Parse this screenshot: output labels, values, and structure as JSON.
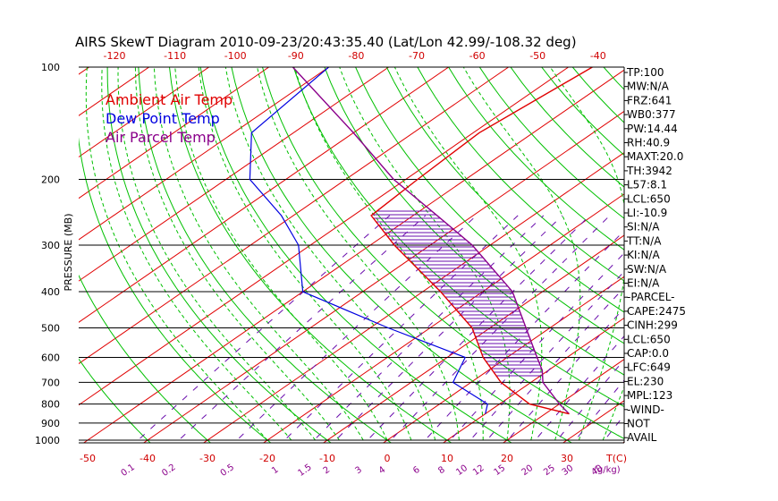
{
  "chart_data": {
    "type": "skewt",
    "title": "AIRS SkewT Diagram 2010-09-23/20:43:35.40 (Lat/Lon 42.99/-108.32 deg)",
    "ylabel": "PRESSURE (MB)",
    "pressure_ticks": [
      "100",
      "200",
      "300",
      "400",
      "500",
      "600",
      "700",
      "800",
      "900",
      "1000"
    ],
    "top_temp_ticks": [
      "-120",
      "-110",
      "-100",
      "-90",
      "-80",
      "-70",
      "-60",
      "-50",
      "-40"
    ],
    "bottom_temp_ticks": [
      "-50",
      "-40",
      "-30",
      "-20",
      "-10",
      "0",
      "10",
      "20",
      "30"
    ],
    "bottom_temp_unit": "T(C)",
    "mixing_ratio_labels": [
      "0.1",
      "0.2",
      "0.5",
      "1",
      "1.5",
      "2",
      "3",
      "4",
      "6",
      "8",
      "10",
      "12",
      "15",
      "20",
      "25",
      "30",
      "40"
    ],
    "mixing_ratio_unit": "(g/kg)",
    "legend": [
      {
        "name": "Ambient Air Temp",
        "color": "#e00000"
      },
      {
        "name": "Dew Point Temp",
        "color": "#0000e0"
      },
      {
        "name": "Air Parcel Temp",
        "color": "#8b008b"
      }
    ],
    "ambient_temp_profile": [
      {
        "p": 100,
        "t": -56
      },
      {
        "p": 150,
        "t": -59
      },
      {
        "p": 200,
        "t": -58
      },
      {
        "p": 250,
        "t": -57
      },
      {
        "p": 300,
        "t": -46
      },
      {
        "p": 400,
        "t": -27
      },
      {
        "p": 500,
        "t": -13
      },
      {
        "p": 600,
        "t": -4
      },
      {
        "p": 700,
        "t": 5
      },
      {
        "p": 800,
        "t": 15
      },
      {
        "p": 850,
        "t": 24
      }
    ],
    "dewpoint_profile": [
      {
        "p": 100,
        "t": -100
      },
      {
        "p": 150,
        "t": -97
      },
      {
        "p": 200,
        "t": -86
      },
      {
        "p": 250,
        "t": -72
      },
      {
        "p": 300,
        "t": -62
      },
      {
        "p": 400,
        "t": -50
      },
      {
        "p": 500,
        "t": -27
      },
      {
        "p": 600,
        "t": -7
      },
      {
        "p": 700,
        "t": -3
      },
      {
        "p": 800,
        "t": 8
      },
      {
        "p": 850,
        "t": 10
      }
    ],
    "parcel_profile": [
      {
        "p": 100,
        "t": -106
      },
      {
        "p": 150,
        "t": -80
      },
      {
        "p": 200,
        "t": -62
      },
      {
        "p": 250,
        "t": -46
      },
      {
        "p": 300,
        "t": -33
      },
      {
        "p": 400,
        "t": -15
      },
      {
        "p": 500,
        "t": -4
      },
      {
        "p": 600,
        "t": 5
      },
      {
        "p": 650,
        "t": 9
      },
      {
        "p": 700,
        "t": 12
      },
      {
        "p": 800,
        "t": 20
      },
      {
        "p": 850,
        "t": 24
      }
    ],
    "indices": [
      "TP:100",
      "MW:N/A",
      "FRZ:641",
      "WB0:377",
      "PW:14.44",
      "RH:40.9",
      "MAXT:20.0",
      "TH:3942",
      "L57:8.1",
      "LCL:650",
      "LI:-10.9",
      "SI:N/A",
      "TT:N/A",
      "KI:N/A",
      "SW:N/A",
      "EI:N/A",
      "-PARCEL-",
      "CAPE:2475",
      "CINH:299",
      "LCL:650",
      "CAP:0.0",
      "LFC:649",
      "EL:230",
      "MPL:123",
      "-WIND-",
      "NOT",
      "AVAIL"
    ],
    "colors": {
      "isotherm": "#e00000",
      "dry_adiabat": "#00c000",
      "moist_adiabat": "#00c000",
      "mixing_ratio": "#6a0dad",
      "isobar": "#000000",
      "cape_hatch": "#6a0dad"
    }
  }
}
